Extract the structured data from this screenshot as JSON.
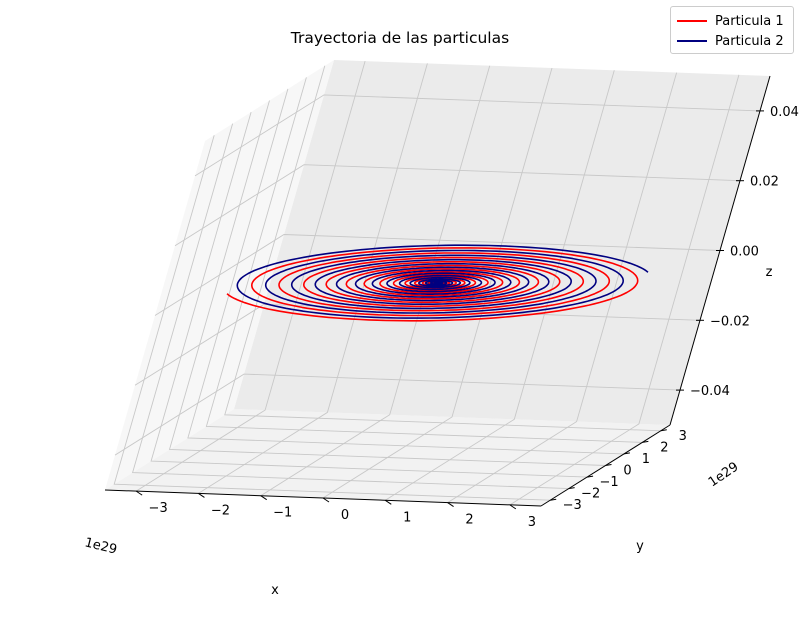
{
  "chart_data": {
    "type": "line",
    "projection": "3d",
    "title": "Trayectoria de las particulas",
    "xlabel": "x",
    "ylabel": "y",
    "zlabel": "z",
    "x_offset_label": "1e29",
    "y_offset_label": "1e29",
    "xlim": [
      -3.5,
      3.5
    ],
    "ylim": [
      -3.5,
      3.5
    ],
    "zlim": [
      -0.05,
      0.05
    ],
    "x_ticks": [
      -3,
      -2,
      -1,
      0,
      1,
      2,
      3
    ],
    "y_ticks": [
      -3,
      -2,
      -1,
      0,
      1,
      2,
      3
    ],
    "z_ticks": [
      -0.04,
      -0.02,
      0.0,
      0.02,
      0.04
    ],
    "z_tick_labels": [
      "−0.04",
      "−0.02",
      "0.00",
      "0.02",
      "0.04"
    ],
    "x_tick_labels": [
      "−3",
      "−2",
      "−1",
      "0",
      "1",
      "2",
      "3"
    ],
    "y_tick_labels": [
      "−3",
      "−2",
      "−1",
      "0",
      "1",
      "2",
      "3"
    ],
    "grid": true,
    "legend_position": "top-right",
    "series": [
      {
        "name": "Particula 1",
        "color": "#ff0000",
        "shape": "inward spiral in plane z=0",
        "start": [
          -2.9,
          -1.5,
          0.0
        ],
        "end": [
          0.0,
          0.0,
          0.0
        ],
        "max_radius": 3.3,
        "turns": 16
      },
      {
        "name": "Particula 2",
        "color": "#000080",
        "shape": "inward spiral in plane z=0",
        "start": [
          2.9,
          1.5,
          0.0
        ],
        "end": [
          0.0,
          0.0,
          0.0
        ],
        "max_radius": 3.3,
        "turns": 16
      }
    ]
  }
}
